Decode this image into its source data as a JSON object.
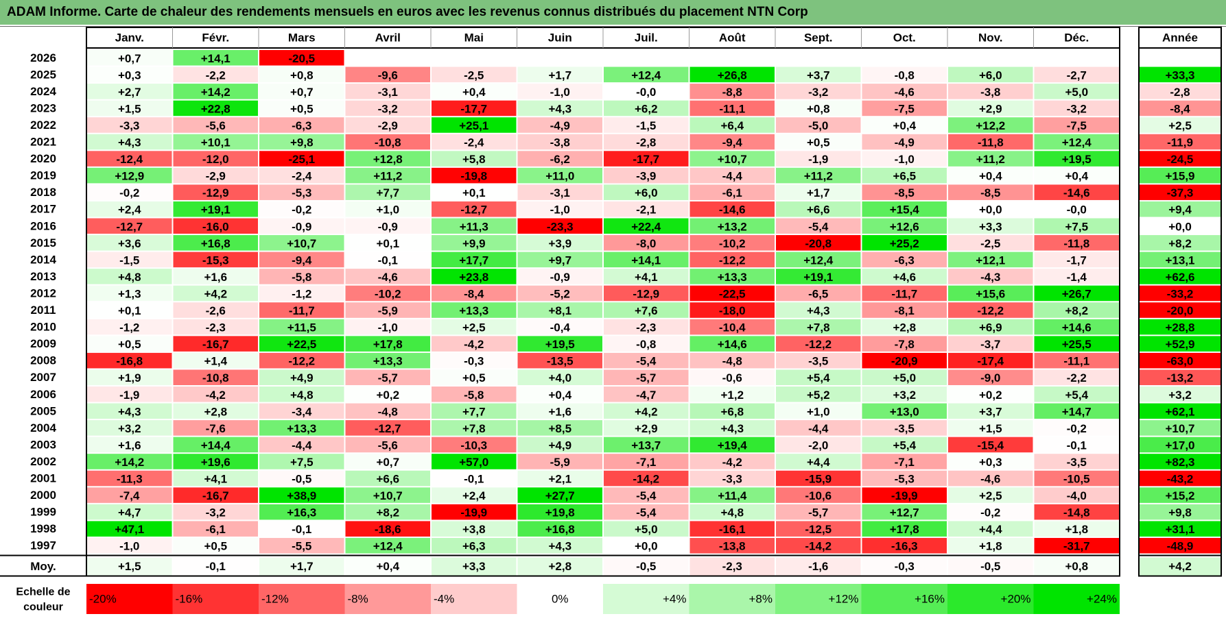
{
  "title": "ADAM Informe. Carte de chaleur des rendements mensuels en euros avec les revenus connus distribués du placement NTN Corp",
  "chart_data": {
    "type": "heatmap",
    "title": "ADAM Informe. Carte de chaleur des rendements mensuels en euros avec les revenus connus distribués du placement NTN Corp",
    "columns": [
      "Janv.",
      "Févr.",
      "Mars",
      "Avril",
      "Mai",
      "Juin",
      "Juil.",
      "Août",
      "Sept.",
      "Oct.",
      "Nov.",
      "Déc."
    ],
    "year_header": "Année",
    "rows": [
      {
        "year": "2026",
        "values": [
          0.7,
          14.1,
          -20.5,
          null,
          null,
          null,
          null,
          null,
          null,
          null,
          null,
          null
        ],
        "annual": null
      },
      {
        "year": "2025",
        "values": [
          0.3,
          -2.2,
          0.8,
          -9.6,
          -2.5,
          1.7,
          12.4,
          26.8,
          3.7,
          -0.8,
          6.0,
          -2.7
        ],
        "annual": 33.3
      },
      {
        "year": "2024",
        "values": [
          2.7,
          14.2,
          0.7,
          -3.1,
          0.4,
          -1.0,
          -0.0,
          -8.8,
          -3.2,
          -4.6,
          -3.8,
          5.0
        ],
        "annual": -2.8
      },
      {
        "year": "2023",
        "values": [
          1.5,
          22.8,
          0.5,
          -3.2,
          -17.7,
          4.3,
          6.2,
          -11.1,
          0.8,
          -7.5,
          2.9,
          -3.2
        ],
        "annual": -8.4
      },
      {
        "year": "2022",
        "values": [
          -3.3,
          -5.6,
          -6.3,
          -2.9,
          25.1,
          -4.9,
          -1.5,
          6.4,
          -5.0,
          0.4,
          12.2,
          -7.5
        ],
        "annual": 2.5
      },
      {
        "year": "2021",
        "values": [
          4.3,
          10.1,
          9.8,
          -10.8,
          -2.4,
          -3.8,
          -2.8,
          -9.4,
          0.5,
          -4.9,
          -11.8,
          12.4
        ],
        "annual": -11.9
      },
      {
        "year": "2020",
        "values": [
          -12.4,
          -12.0,
          -25.1,
          12.8,
          5.8,
          -6.2,
          -17.7,
          10.7,
          -1.9,
          -1.0,
          11.2,
          19.5
        ],
        "annual": -24.5
      },
      {
        "year": "2019",
        "values": [
          12.9,
          -2.9,
          -2.4,
          11.2,
          -19.8,
          11.0,
          -3.9,
          -4.4,
          11.2,
          6.5,
          0.4,
          0.4
        ],
        "annual": 15.9
      },
      {
        "year": "2018",
        "values": [
          -0.2,
          -12.9,
          -5.3,
          7.7,
          0.1,
          -3.1,
          6.0,
          -6.1,
          1.7,
          -8.5,
          -8.5,
          -14.6
        ],
        "annual": -37.3
      },
      {
        "year": "2017",
        "values": [
          2.4,
          19.1,
          -0.2,
          1.0,
          -12.7,
          -1.0,
          -2.1,
          -14.6,
          6.6,
          15.4,
          0.0,
          -0.0
        ],
        "annual": 9.4
      },
      {
        "year": "2016",
        "values": [
          -12.7,
          -16.0,
          -0.9,
          -0.9,
          11.3,
          -23.3,
          22.4,
          13.2,
          -5.4,
          12.6,
          3.3,
          7.5
        ],
        "annual": 0.0
      },
      {
        "year": "2015",
        "values": [
          3.6,
          16.8,
          10.7,
          0.1,
          9.9,
          3.9,
          -8.0,
          -10.2,
          -20.8,
          25.2,
          -2.5,
          -11.8
        ],
        "annual": 8.2
      },
      {
        "year": "2014",
        "values": [
          -1.5,
          -15.3,
          -9.4,
          -0.1,
          17.7,
          9.7,
          14.1,
          -12.2,
          12.4,
          -6.3,
          12.1,
          -1.7
        ],
        "annual": 13.1
      },
      {
        "year": "2013",
        "values": [
          4.8,
          1.6,
          -5.8,
          -4.6,
          23.8,
          -0.9,
          4.1,
          13.3,
          19.1,
          4.6,
          -4.3,
          -1.4
        ],
        "annual": 62.6
      },
      {
        "year": "2012",
        "values": [
          1.3,
          4.2,
          -1.2,
          -10.2,
          -8.4,
          -5.2,
          -12.9,
          -22.5,
          -6.5,
          -11.7,
          15.6,
          26.7
        ],
        "annual": -33.2
      },
      {
        "year": "2011",
        "values": [
          0.1,
          -2.6,
          -11.7,
          -5.9,
          13.3,
          8.1,
          7.6,
          -18.0,
          4.3,
          -8.1,
          -12.2,
          8.2
        ],
        "annual": -20.0
      },
      {
        "year": "2010",
        "values": [
          -1.2,
          -2.3,
          11.5,
          -1.0,
          2.5,
          -0.4,
          -2.3,
          -10.4,
          7.8,
          2.8,
          6.9,
          14.6
        ],
        "annual": 28.8
      },
      {
        "year": "2009",
        "values": [
          0.5,
          -16.7,
          22.5,
          17.8,
          -4.2,
          19.5,
          -0.8,
          14.6,
          -12.2,
          -7.8,
          -3.7,
          25.5
        ],
        "annual": 52.9
      },
      {
        "year": "2008",
        "values": [
          -16.8,
          1.4,
          -12.2,
          13.3,
          -0.3,
          -13.5,
          -5.4,
          -4.8,
          -3.5,
          -20.9,
          -17.4,
          -11.1
        ],
        "annual": -63.0
      },
      {
        "year": "2007",
        "values": [
          1.9,
          -10.8,
          4.9,
          -5.7,
          0.5,
          4.0,
          -5.7,
          -0.6,
          5.4,
          5.0,
          -9.0,
          -2.2
        ],
        "annual": -13.2
      },
      {
        "year": "2006",
        "values": [
          -1.9,
          -4.2,
          4.8,
          0.2,
          -5.8,
          0.4,
          -4.7,
          1.2,
          5.2,
          3.2,
          0.2,
          5.4
        ],
        "annual": 3.2
      },
      {
        "year": "2005",
        "values": [
          4.3,
          2.8,
          -3.4,
          -4.8,
          7.7,
          1.6,
          4.2,
          6.8,
          1.0,
          13.0,
          3.7,
          14.7
        ],
        "annual": 62.1
      },
      {
        "year": "2004",
        "values": [
          3.2,
          -7.6,
          13.3,
          -12.7,
          7.8,
          8.5,
          2.9,
          4.3,
          -4.4,
          -3.5,
          1.5,
          -0.2
        ],
        "annual": 10.7
      },
      {
        "year": "2003",
        "values": [
          1.6,
          14.4,
          -4.4,
          -5.6,
          -10.3,
          4.9,
          13.7,
          19.4,
          -2.0,
          5.4,
          -15.4,
          -0.1
        ],
        "annual": 17.0
      },
      {
        "year": "2002",
        "values": [
          14.2,
          19.6,
          7.5,
          0.7,
          57.0,
          -5.9,
          -7.1,
          -4.2,
          4.4,
          -7.1,
          0.3,
          -3.5
        ],
        "annual": 82.3
      },
      {
        "year": "2001",
        "values": [
          -11.3,
          4.1,
          -0.5,
          6.6,
          -0.1,
          2.1,
          -14.2,
          -3.3,
          -15.9,
          -5.3,
          -4.6,
          -10.5
        ],
        "annual": -43.2
      },
      {
        "year": "2000",
        "values": [
          -7.4,
          -16.7,
          38.9,
          10.7,
          2.4,
          27.7,
          -5.4,
          11.4,
          -10.6,
          -19.9,
          2.5,
          -4.0
        ],
        "annual": 15.2
      },
      {
        "year": "1999",
        "values": [
          4.7,
          -3.2,
          16.3,
          8.2,
          -19.9,
          19.8,
          -5.4,
          4.8,
          -5.7,
          12.7,
          -0.2,
          -14.8
        ],
        "annual": 9.8
      },
      {
        "year": "1998",
        "values": [
          47.1,
          -6.1,
          -0.1,
          -18.6,
          3.8,
          16.8,
          5.0,
          -16.1,
          -12.5,
          17.8,
          4.4,
          1.8
        ],
        "annual": 31.1
      },
      {
        "year": "1997",
        "values": [
          -1.0,
          0.5,
          -5.5,
          12.4,
          6.3,
          4.3,
          0.0,
          -13.8,
          -14.2,
          -16.3,
          1.8,
          -31.7
        ],
        "annual": -48.9
      }
    ],
    "average": {
      "label": "Moy.",
      "values": [
        1.5,
        -0.1,
        1.7,
        0.4,
        3.3,
        2.8,
        -0.5,
        -2.3,
        -1.6,
        -0.3,
        -0.5,
        0.8
      ],
      "annual": 4.2
    },
    "scale": {
      "label_line1": "Echelle de",
      "label_line2": "couleur",
      "steps": [
        {
          "text": "-20%",
          "value": -20
        },
        {
          "text": "-16%",
          "value": -16
        },
        {
          "text": "-12%",
          "value": -12
        },
        {
          "text": "-8%",
          "value": -8
        },
        {
          "text": "-4%",
          "value": -4
        },
        {
          "text": "0%",
          "value": 0
        },
        {
          "text": "+4%",
          "value": 4
        },
        {
          "text": "+8%",
          "value": 8
        },
        {
          "text": "+12%",
          "value": 12
        },
        {
          "text": "+16%",
          "value": 16
        },
        {
          "text": "+20%",
          "value": 20
        },
        {
          "text": "+24%",
          "value": 24
        }
      ]
    },
    "colors": {
      "title_bar": "#7ec27e",
      "negative_max": "#ff0000",
      "positive_max": "#00e400",
      "neutral": "#ffffff"
    }
  }
}
